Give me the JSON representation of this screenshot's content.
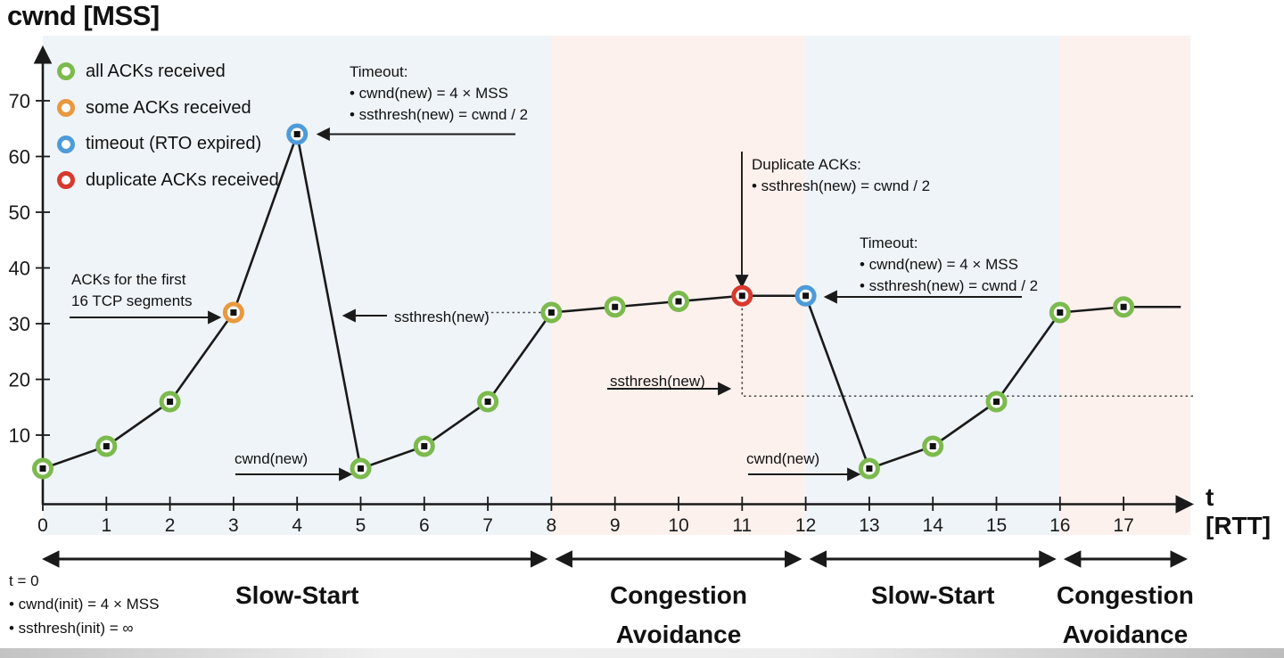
{
  "title": "cwnd [MSS]",
  "axis": {
    "x_label": "t [RTT]"
  },
  "colors": {
    "events": {
      "all-acks": "#7cba4e",
      "some-acks": "#e8993f",
      "timeout": "#4d9bd9",
      "dup-acks": "#d63a2e"
    },
    "regions": {
      "slow-start": "#eff4f8",
      "congestion-avoidance": "#fdf1ed"
    },
    "line": "#1a1a1a",
    "text": "#111111",
    "guide": "#4a4a4a"
  },
  "legend": [
    {
      "type": "all-acks",
      "label": "all ACKs received"
    },
    {
      "type": "some-acks",
      "label": "some ACKs received"
    },
    {
      "type": "timeout",
      "label": "timeout (RTO expired)"
    },
    {
      "type": "dup-acks",
      "label": "duplicate ACKs received"
    }
  ],
  "chart_data": {
    "type": "line",
    "title": "cwnd [MSS]",
    "xlabel": "t [RTT]",
    "ylabel": "cwnd [MSS]",
    "x": [
      0,
      1,
      2,
      3,
      4,
      5,
      6,
      7,
      8,
      9,
      10,
      11,
      12,
      13,
      14,
      15,
      16,
      17
    ],
    "values": [
      4,
      8,
      16,
      32,
      64,
      4,
      8,
      16,
      32,
      33,
      34,
      35,
      35,
      4,
      8,
      16,
      32,
      33
    ],
    "point_events": [
      "all-acks",
      "all-acks",
      "all-acks",
      "some-acks",
      "timeout",
      "all-acks",
      "all-acks",
      "all-acks",
      "all-acks",
      "all-acks",
      "all-acks",
      "dup-acks",
      "timeout",
      "all-acks",
      "all-acks",
      "all-acks",
      "all-acks",
      "all-acks"
    ],
    "line_extension": {
      "x": 17.9,
      "value": 33
    },
    "x_ticks": [
      0,
      1,
      2,
      3,
      4,
      5,
      6,
      7,
      8,
      9,
      10,
      11,
      12,
      13,
      14,
      15,
      16,
      17
    ],
    "y_ticks": [
      10,
      20,
      30,
      40,
      50,
      60,
      70
    ],
    "xlim": [
      0,
      18
    ],
    "ylim": [
      0,
      75
    ],
    "grid": false,
    "legend_position": "top-left",
    "ssthresh_guide_levels": [
      32,
      17
    ],
    "phases": [
      {
        "label": "Slow-Start",
        "kind": "slow-start",
        "from": 0,
        "to": 8
      },
      {
        "label": "Congestion Avoidance",
        "kind": "congestion-avoidance",
        "from": 8,
        "to": 12
      },
      {
        "label": "Slow-Start",
        "kind": "slow-start",
        "from": 12,
        "to": 16
      },
      {
        "label": "Congestion Avoidance",
        "kind": "congestion-avoidance",
        "from": 16,
        "to": 18.05
      }
    ]
  },
  "annotations": {
    "timeout1": {
      "title": "Timeout:",
      "lines": [
        "• cwnd(new) = 4 × MSS",
        "• ssthresh(new) = cwnd / 2"
      ]
    },
    "timeout2": {
      "title": "Timeout:",
      "lines": [
        "• cwnd(new) = 4 × MSS",
        "• ssthresh(new) = cwnd / 2"
      ]
    },
    "dup_acks": {
      "title": "Duplicate ACKs:",
      "lines": [
        "• ssthresh(new) = cwnd / 2"
      ]
    },
    "acks_first": {
      "lines": [
        "ACKs for the first",
        "16 TCP segments"
      ]
    },
    "ssthresh_new_1": "ssthresh(new)",
    "ssthresh_new_2": "ssthresh(new)",
    "cwnd_new_1": "cwnd(new)",
    "cwnd_new_2": "cwnd(new)",
    "init": {
      "lines": [
        "t = 0",
        "• cwnd(init) = 4 × MSS",
        "• ssthresh(init) = ∞"
      ]
    }
  }
}
